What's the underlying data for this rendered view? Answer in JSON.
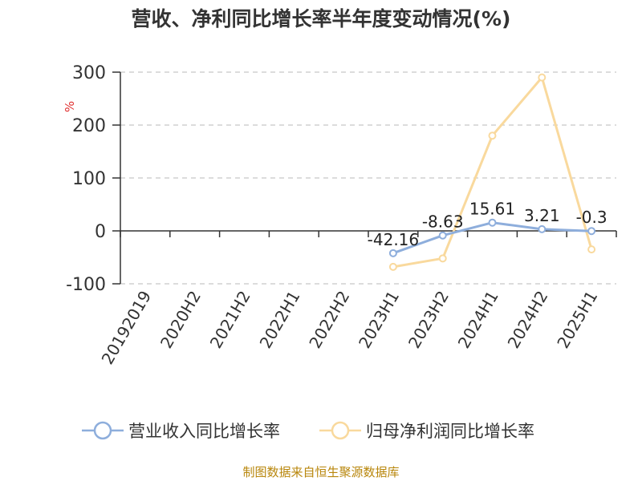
{
  "chart_data": {
    "type": "line",
    "title": "营收、净利同比增长率半年度变动情况(%)",
    "ylabel": "%",
    "categories": [
      "20192019",
      "2020H2",
      "2021H2",
      "2022H1",
      "2022H2",
      "2023H1",
      "2023H2",
      "2024H1",
      "2024H2",
      "2025H1"
    ],
    "y_ticks": [
      "300",
      "200",
      "100",
      "0",
      "-100"
    ],
    "ylim": [
      -100,
      300
    ],
    "grid": true,
    "legend_position": "bottom",
    "series": [
      {
        "name": "营业收入同比增长率",
        "color": "#8eaedc",
        "values": [
          null,
          null,
          null,
          null,
          null,
          -42.16,
          -8.63,
          15.61,
          3.21,
          -0.3
        ],
        "labels": [
          "",
          "",
          "",
          "",
          "",
          "-42.16",
          "-8.63",
          "15.61",
          "3.21",
          "-0.3"
        ]
      },
      {
        "name": "归母净利润同比增长率",
        "color": "#f9d99d",
        "values": [
          null,
          null,
          null,
          null,
          null,
          -68,
          -52,
          180,
          290,
          -35
        ]
      }
    ]
  },
  "source": "制图数据来自恒生聚源数据库"
}
